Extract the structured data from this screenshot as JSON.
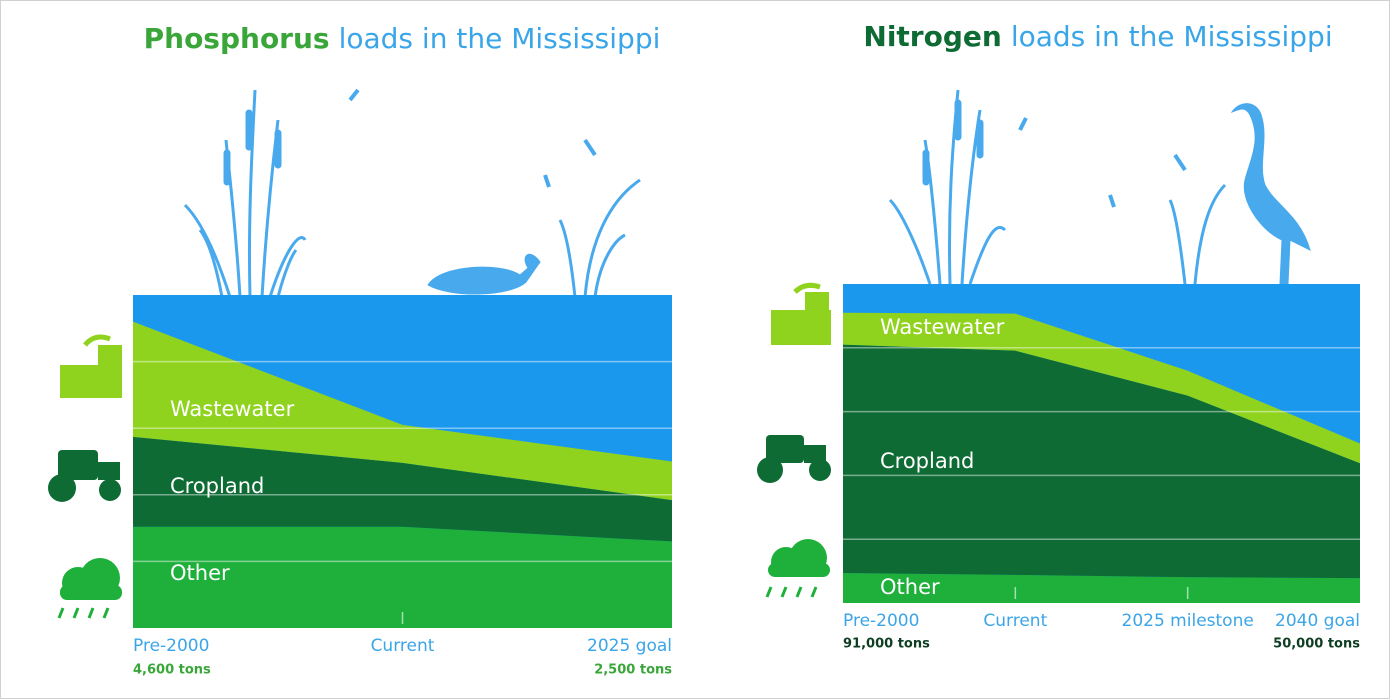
{
  "chart_data": [
    {
      "type": "stacked_area",
      "title_emphasis": "Phosphorus",
      "title": "loads in the Mississippi",
      "categories": [
        "Pre-2000",
        "Current",
        "2025 goal"
      ],
      "category_notes": [
        "4,600 tons",
        null,
        "2,500 tons"
      ],
      "series": [
        {
          "name": "Other",
          "color": "#1fb03c",
          "values": [
            1520,
            1520,
            1300
          ]
        },
        {
          "name": "Cropland",
          "color": "#0e6b34",
          "values": [
            1350,
            960,
            620
          ]
        },
        {
          "name": "Wastewater",
          "color": "#8fd31f",
          "values": [
            1730,
            570,
            580
          ]
        }
      ],
      "ylim": [
        0,
        5000
      ],
      "yticks": [
        1000,
        2000,
        3000,
        4000
      ],
      "grid": true,
      "background_color": "#1a98ee"
    },
    {
      "type": "stacked_area",
      "title_emphasis": "Nitrogen",
      "title": "loads in the Mississippi",
      "categories": [
        "Pre-2000",
        "Current",
        "2025 milestone",
        "2040 goal"
      ],
      "category_notes": [
        "91,000 tons",
        null,
        null,
        "50,000 tons"
      ],
      "series": [
        {
          "name": "Other",
          "color": "#1fb03c",
          "values": [
            9400,
            8800,
            8100,
            7800
          ]
        },
        {
          "name": "Cropland",
          "color": "#0e6b34",
          "values": [
            71600,
            70300,
            56900,
            36000
          ]
        },
        {
          "name": "Wastewater",
          "color": "#8fd31f",
          "values": [
            10000,
            11600,
            7800,
            6200
          ]
        }
      ],
      "ylim": [
        0,
        100000
      ],
      "yticks": [
        20000,
        40000,
        60000,
        80000
      ],
      "grid": true,
      "background_color": "#1a98ee"
    }
  ]
}
